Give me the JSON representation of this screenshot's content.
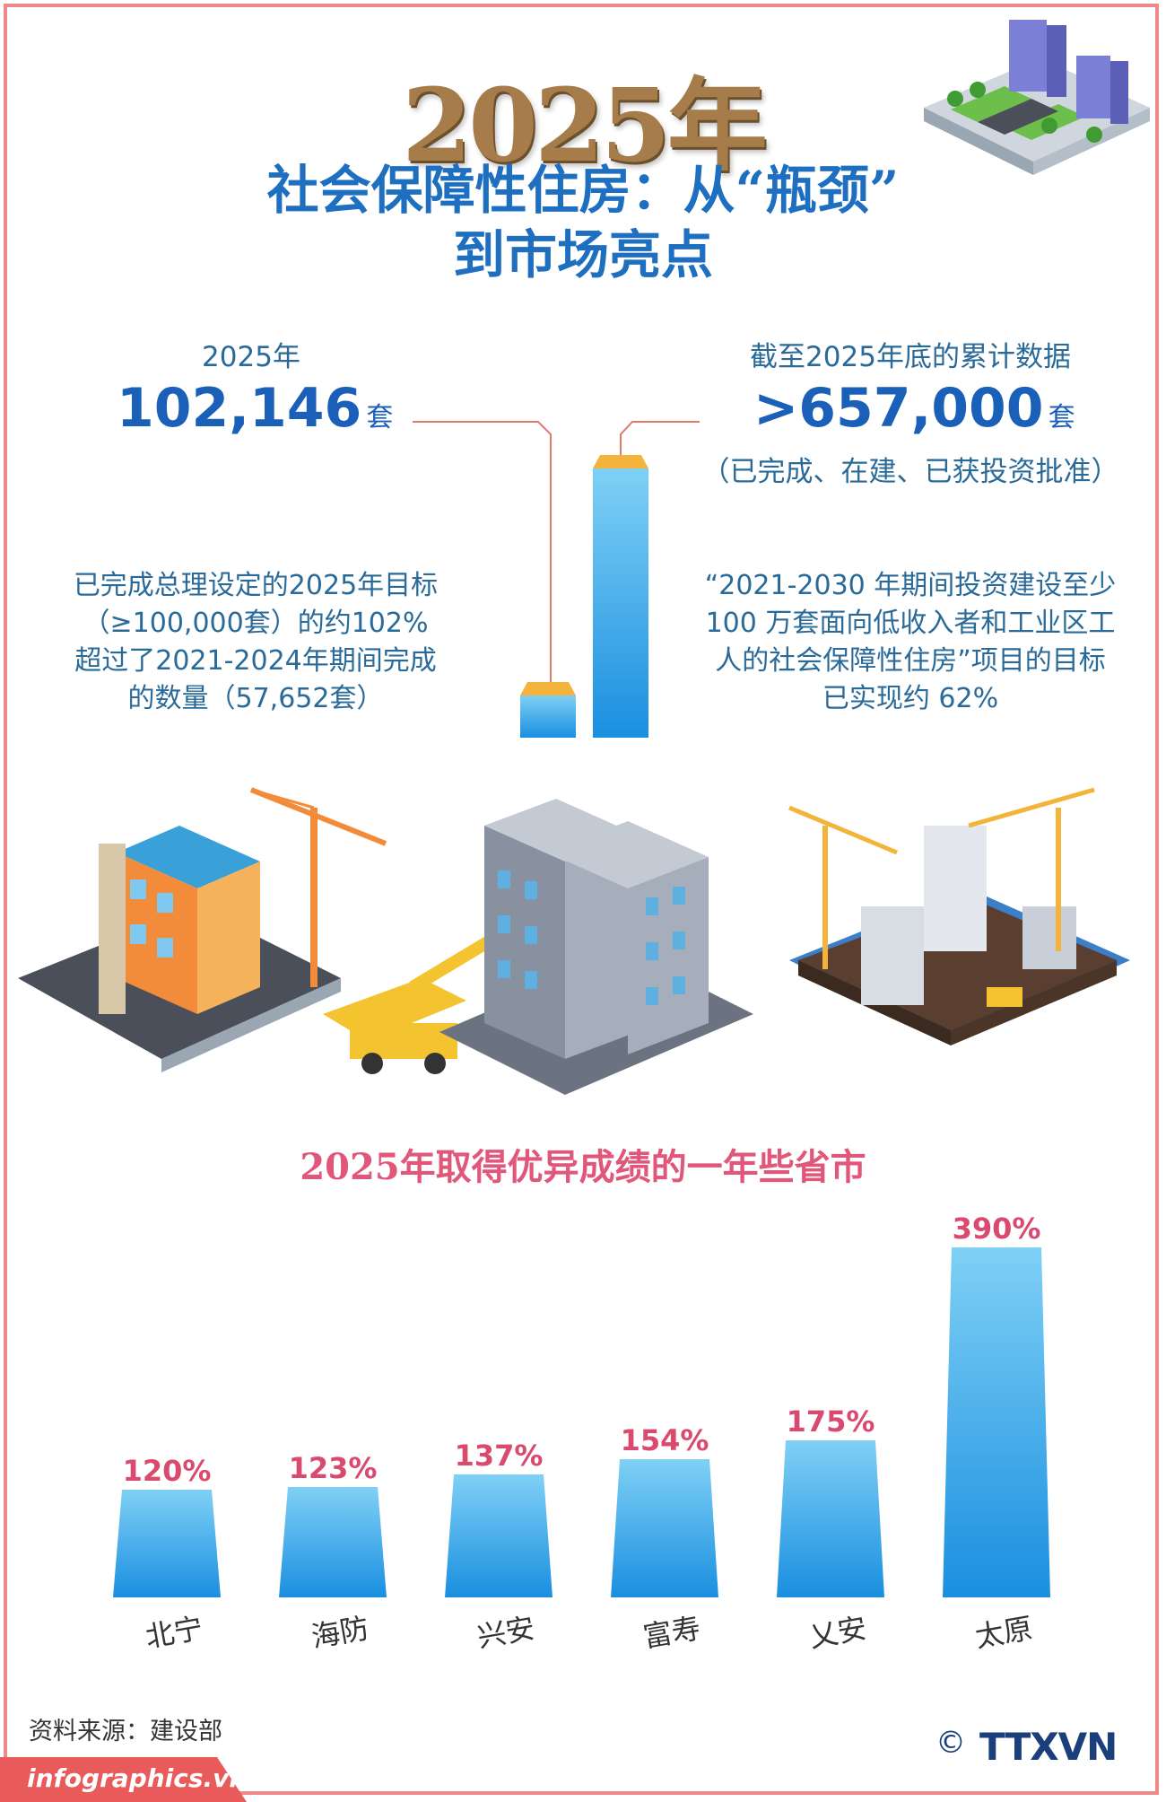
{
  "header": {
    "year_title": "2025年",
    "title_line1": "社会保障性住房：从“瓶颈”",
    "title_line2": "到市场亮点"
  },
  "stat_left": {
    "label": "2025年",
    "value": "102,146",
    "unit": "套",
    "desc_line1": "已完成总理设定的2025年目标",
    "desc_line2": "（≥100,000套）的约102%",
    "desc_line3": "超过了2021-2024年期间完成",
    "desc_line4": "的数量（57,652套）"
  },
  "stat_right": {
    "label": "截至2025年底的累计数据",
    "value": ">657,000",
    "unit": "套",
    "paren": "（已完成、在建、已获投资批准）",
    "desc_line1": "“2021-2030 年期间投资建设至少",
    "desc_line2": "100 万套面向低收入者和工业区工",
    "desc_line3": "人的社会保障性住房”项目的目标",
    "desc_line4": "已实现约 62%"
  },
  "chart_data": {
    "type": "bar",
    "title": "2025年取得优异成绩的一年些省市",
    "categories": [
      "北宁",
      "海防",
      "兴安",
      "富寿",
      "乂安",
      "太原"
    ],
    "values": [
      120,
      123,
      137,
      154,
      175,
      390
    ],
    "value_labels": [
      "120%",
      "123%",
      "137%",
      "154%",
      "175%",
      "390%"
    ],
    "unit": "%",
    "ylim": [
      0,
      400
    ],
    "grid": false,
    "legend": "none"
  },
  "colors": {
    "accent_blue": "#1f6fc0",
    "chart_title_pink": "#e0577a",
    "bar_top": "#78ccf2",
    "bar_bottom": "#1a8fe0",
    "frame_pink": "#f08a8a"
  },
  "footer": {
    "source": "资料来源：建设部",
    "site": "infographics.vn",
    "copyright": "©",
    "logo": "TTXVN"
  }
}
